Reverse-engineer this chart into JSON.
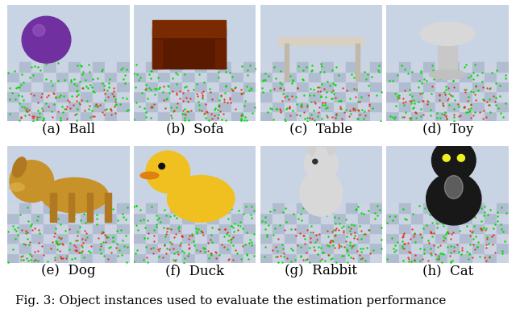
{
  "images": [
    {
      "label": "(a)  Ball",
      "row": 0,
      "col": 0
    },
    {
      "label": "(b)  Sofa",
      "row": 0,
      "col": 1
    },
    {
      "label": "(c)  Table",
      "row": 0,
      "col": 2
    },
    {
      "label": "(d)  Toy",
      "row": 0,
      "col": 3
    },
    {
      "label": "(e)  Dog",
      "row": 1,
      "col": 0
    },
    {
      "label": "(f)  Duck",
      "row": 1,
      "col": 1
    },
    {
      "label": "(g)  Rabbit",
      "row": 1,
      "col": 2
    },
    {
      "label": "(h)  Cat",
      "row": 1,
      "col": 3
    }
  ],
  "caption": "Fig. 3: Object instances used to evaluate the estimation performance",
  "caption_fontsize": 11,
  "label_fontsize": 12,
  "fig_width": 6.4,
  "fig_height": 3.88
}
